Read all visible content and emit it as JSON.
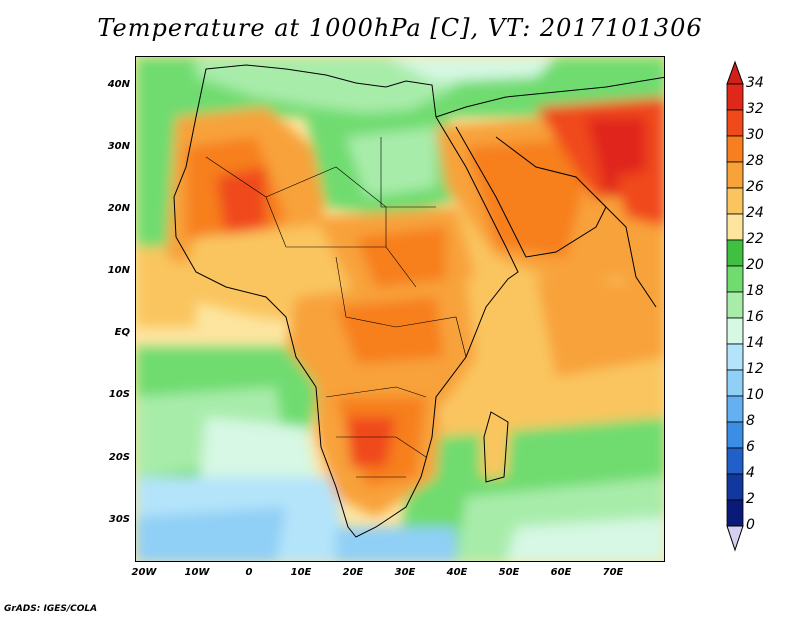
{
  "title": "Temperature at 1000hPa [C], VT: 2017101306",
  "credit": "GrADS: IGES/COLA",
  "map": {
    "lat_labels": [
      "40N",
      "30N",
      "20N",
      "10N",
      "EQ",
      "10S",
      "20S",
      "30S"
    ],
    "lon_labels": [
      "20W",
      "10W",
      "0",
      "10E",
      "20E",
      "30E",
      "40E",
      "50E",
      "60E",
      "70E"
    ]
  },
  "colorbar": {
    "labels": [
      "34",
      "32",
      "30",
      "28",
      "26",
      "24",
      "22",
      "20",
      "18",
      "16",
      "14",
      "12",
      "10",
      "8",
      "6",
      "4",
      "2",
      "0"
    ],
    "colors": [
      "#e0281a",
      "#f04a1c",
      "#f77f1f",
      "#f8a23a",
      "#fac55f",
      "#fde5a0",
      "#40c040",
      "#70dc70",
      "#a8ecaa",
      "#d6f8e4",
      "#b4e4fa",
      "#90cff6",
      "#64b0f0",
      "#3c8ee4",
      "#2060c8",
      "#1238a0",
      "#0a1a78"
    ],
    "over_color": "#d0201a",
    "under_color": "#d4d0f0"
  }
}
